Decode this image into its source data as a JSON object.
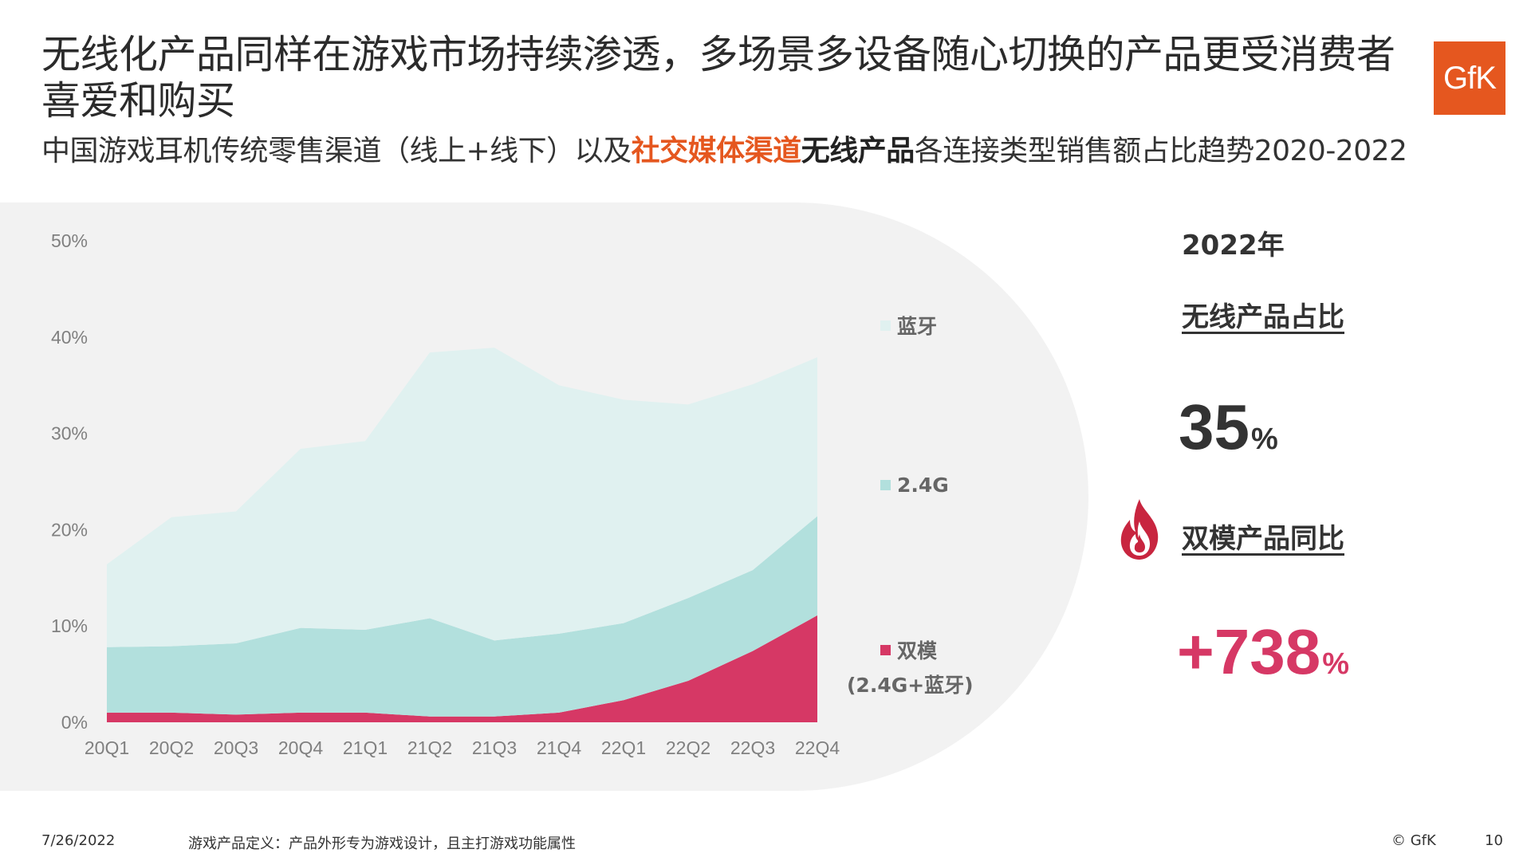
{
  "header": {
    "title": "无线化产品同样在游戏市场持续渗透，多场景多设备随心切换的产品更受消费者喜爱和购买",
    "subtitle_part1": "中国游戏耳机传统零售渠道（线上+线下）以及",
    "subtitle_part2": "社交媒体渠道",
    "subtitle_part3": "无线产品",
    "subtitle_part4": "各连接类型销售额占比趋势2020-2022",
    "logo_text": "GfK"
  },
  "chart_data": {
    "type": "area",
    "stacked": true,
    "categories": [
      "20Q1",
      "20Q2",
      "20Q3",
      "20Q4",
      "21Q1",
      "21Q2",
      "21Q3",
      "21Q4",
      "22Q1",
      "22Q2",
      "22Q3",
      "22Q4"
    ],
    "y_ticks": [
      "0%",
      "10%",
      "20%",
      "30%",
      "40%",
      "50%"
    ],
    "ylim": [
      0,
      50
    ],
    "series": [
      {
        "name": "双模",
        "name_line2": "(2.4G+蓝牙)",
        "color": "#d63865",
        "values": [
          1.0,
          1.0,
          0.8,
          1.0,
          1.0,
          0.6,
          0.6,
          1.0,
          2.3,
          4.3,
          7.4,
          11.1
        ]
      },
      {
        "name": "2.4G",
        "color": "#b2e0dd",
        "values": [
          6.8,
          6.9,
          7.4,
          8.8,
          8.6,
          10.2,
          7.9,
          8.2,
          8.0,
          8.6,
          8.4,
          10.3
        ]
      },
      {
        "name": "蓝牙",
        "color": "#e0f1f0",
        "values": [
          8.6,
          13.4,
          13.7,
          18.6,
          19.6,
          27.6,
          30.4,
          25.8,
          23.2,
          20.1,
          19.3,
          16.5
        ]
      }
    ]
  },
  "kpi": {
    "year": "2022年",
    "label1": "无线产品占比",
    "value1": "35",
    "unit1": "%",
    "label2": "双模产品同比",
    "value2": "+738",
    "unit2": "%",
    "color_dark": "#333333",
    "color_accent": "#d63865",
    "flame_icon": "flame-icon"
  },
  "footer": {
    "date": "7/26/2022",
    "note": "游戏产品定义：产品外形专为游戏设计，且主打游戏功能属性",
    "copyright": "© GfK",
    "page": "10"
  }
}
